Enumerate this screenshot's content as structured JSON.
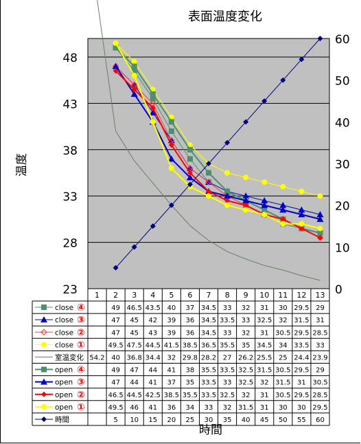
{
  "chart_data": {
    "type": "line",
    "title": "表面温度変化",
    "xlabel": "時間",
    "ylabel": "温度",
    "x": [
      1,
      2,
      3,
      4,
      5,
      6,
      7,
      8,
      9,
      10,
      11,
      12,
      13
    ],
    "x_tick_labels": [
      "1",
      "2",
      "3",
      "4",
      "5",
      "6",
      "7",
      "8",
      "9",
      "10",
      "11",
      "12",
      "13"
    ],
    "y_left_range": [
      23,
      50
    ],
    "y_left_ticks": [
      23,
      28,
      33,
      38,
      43,
      48
    ],
    "y_right_range": [
      0,
      60
    ],
    "y_right_ticks": [
      0,
      10,
      20,
      30,
      40,
      50,
      60
    ],
    "grid": "horizontal",
    "plot_background": "#c0c0c0",
    "legend": "data-table-below",
    "series": [
      {
        "label": "close",
        "num": "④",
        "color": "#4d8f6f",
        "marker": "square",
        "axis": "left",
        "values": [
          null,
          49,
          46.5,
          43.5,
          40,
          37,
          34.5,
          33,
          32,
          31,
          30,
          29.5,
          29
        ]
      },
      {
        "label": "close",
        "num": "③",
        "color": "#0000cc",
        "marker": "triangle",
        "axis": "left",
        "values": [
          null,
          47,
          45,
          42,
          39,
          36,
          34.5,
          33.5,
          33,
          32.5,
          32,
          31.5,
          31
        ]
      },
      {
        "label": "close",
        "num": "②",
        "color": "#ff4040",
        "marker": "diamond-open",
        "axis": "left",
        "values": [
          null,
          47,
          45,
          43,
          39,
          36,
          34.5,
          33,
          32,
          31,
          30.5,
          29.5,
          28.5
        ]
      },
      {
        "label": "close",
        "num": "①",
        "color": "#ffff00",
        "marker": "circle",
        "axis": "left",
        "values": [
          null,
          49.5,
          47.5,
          44.5,
          41.5,
          38.5,
          36.5,
          35.5,
          35,
          34.5,
          34,
          33.5,
          33
        ]
      },
      {
        "label": "室温変化",
        "num": "",
        "color": "#6b7d6b",
        "marker": "none",
        "axis": "left",
        "values": [
          54.2,
          40,
          36.8,
          34.4,
          32,
          29.8,
          28.2,
          27,
          26.2,
          25.5,
          25,
          24.4,
          23.9
        ]
      },
      {
        "label": "open",
        "num": "④",
        "color": "#4d8f6f",
        "marker": "square",
        "axis": "left",
        "values": [
          null,
          49,
          47,
          44,
          41,
          38,
          35.5,
          33.5,
          32.5,
          31.5,
          30.5,
          29.5,
          29
        ]
      },
      {
        "label": "open",
        "num": "③",
        "color": "#0000cc",
        "marker": "triangle",
        "axis": "left",
        "values": [
          null,
          47,
          44,
          41,
          37,
          35,
          33.5,
          33,
          32.5,
          32,
          31.5,
          31,
          30.5
        ]
      },
      {
        "label": "open",
        "num": "②",
        "color": "#ff0000",
        "marker": "diamond",
        "axis": "left",
        "values": [
          null,
          46.5,
          44.5,
          42.5,
          38.5,
          35.5,
          33.5,
          32.5,
          32,
          31,
          30.5,
          29.5,
          28.5
        ]
      },
      {
        "label": "open",
        "num": "①",
        "color": "#ffff00",
        "marker": "circle",
        "axis": "left",
        "values": [
          null,
          49.5,
          46,
          41,
          36,
          34,
          33,
          32,
          31.5,
          31,
          30,
          30,
          29.5
        ]
      },
      {
        "label": "時間",
        "num": "",
        "color": "#000080",
        "marker": "diamond",
        "axis": "right",
        "values": [
          null,
          5,
          10,
          15,
          20,
          25,
          30,
          35,
          40,
          45,
          50,
          55,
          60
        ]
      }
    ]
  }
}
